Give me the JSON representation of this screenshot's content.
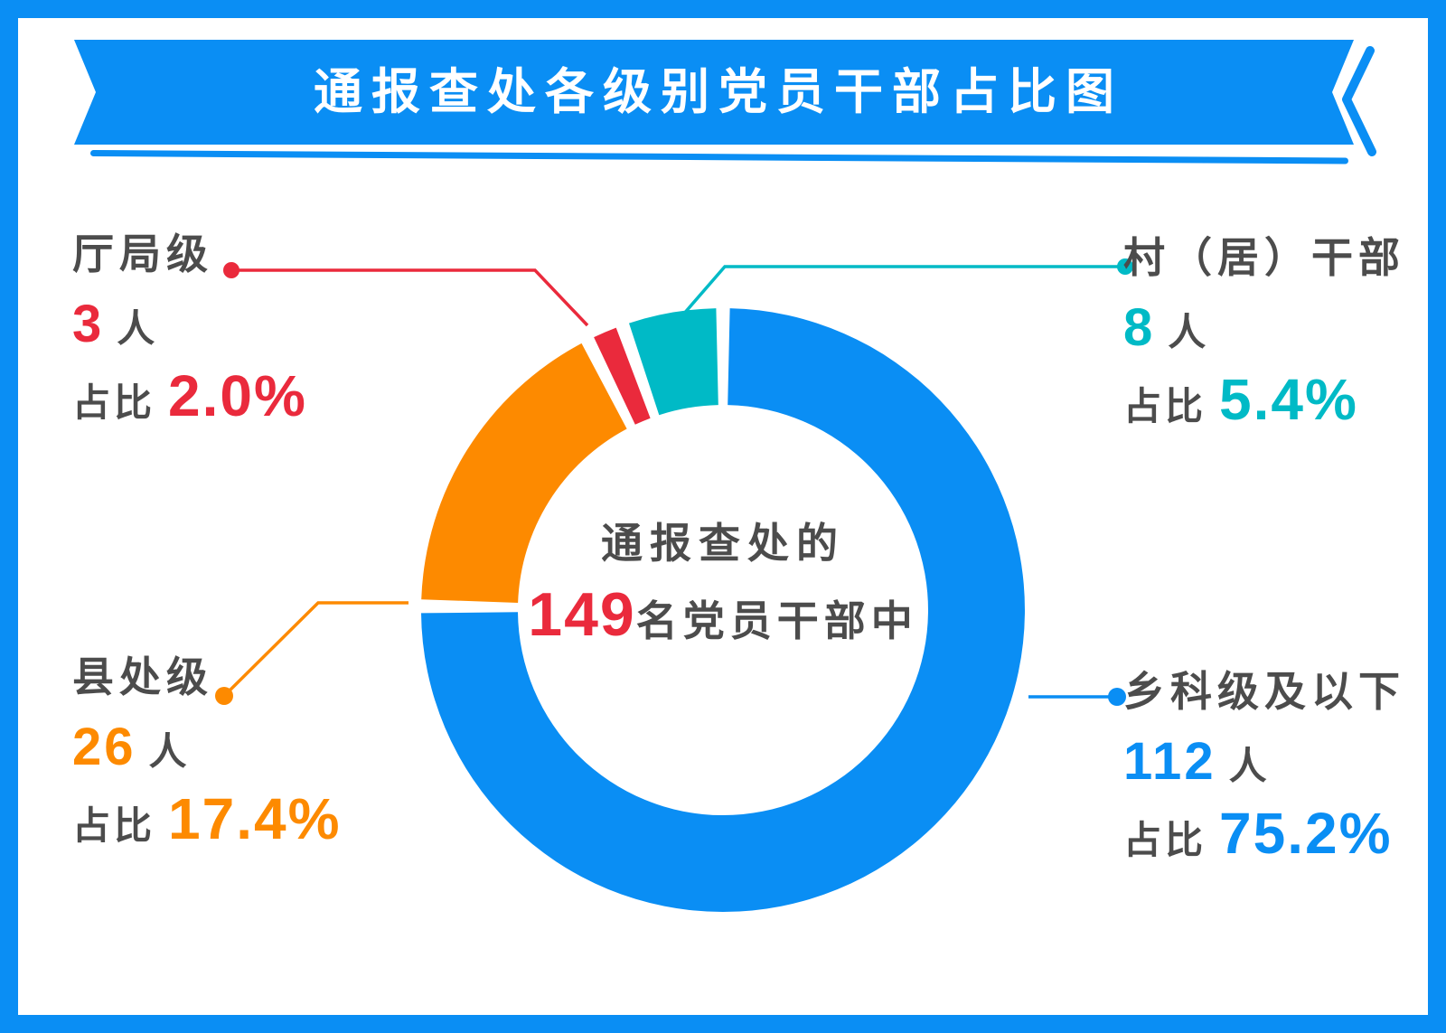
{
  "title": "通报查处各级别党员干部占比图",
  "colors": {
    "blue": "#0a8ef4",
    "orange": "#fd8a00",
    "red": "#ea2a3c",
    "teal": "#00bac6",
    "gray": "#4c4c4c",
    "frame": "#0a8ef4",
    "banner_text": "#ffffff"
  },
  "center_label": {
    "line1": "通报查处的",
    "total": "149",
    "suffix": "名党员干部中"
  },
  "chart_data": {
    "type": "pie",
    "subtype": "donut",
    "title": "通报查处各级别党员干部占比图",
    "center_text": "通报查处的149名党员干部中",
    "total_count": 149,
    "unit_label": "人",
    "ratio_label": "占比",
    "start_angle_deg": 0,
    "direction": "clockwise",
    "segments": [
      {
        "name": "乡科级及以下",
        "count": "112",
        "pct": "75.2%",
        "pct_value": 75.2,
        "color": "#0a8ef4",
        "label_pos": "bottom-right"
      },
      {
        "name": "县处级",
        "count": "26",
        "pct": "17.4%",
        "pct_value": 17.4,
        "color": "#fd8a00",
        "label_pos": "bottom-left"
      },
      {
        "name": "厅局级",
        "count": "3",
        "pct": "2.0%",
        "pct_value": 2.0,
        "color": "#ea2a3c",
        "label_pos": "top-left"
      },
      {
        "name": "村（居）干部",
        "count": "8",
        "pct": "5.4%",
        "pct_value": 5.4,
        "color": "#00bac6",
        "label_pos": "top-right"
      }
    ]
  }
}
